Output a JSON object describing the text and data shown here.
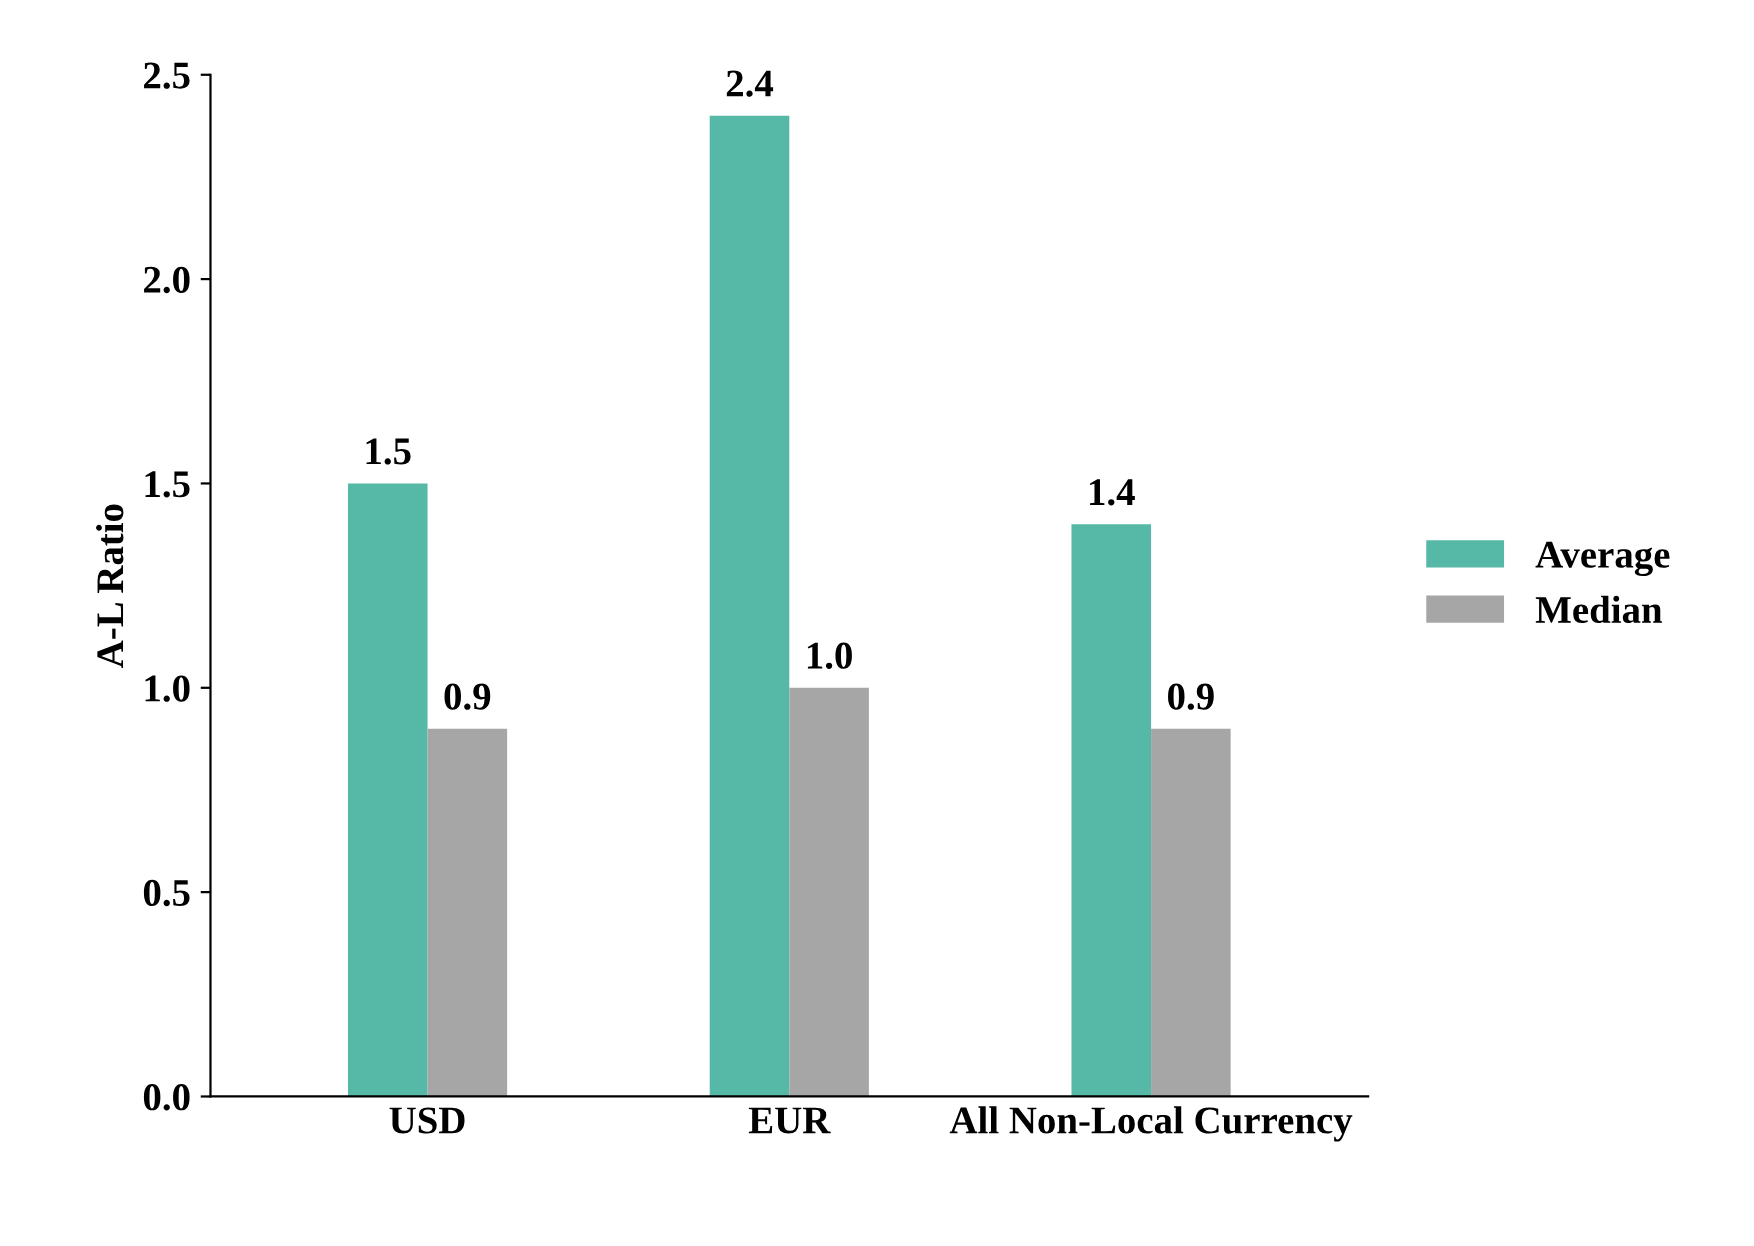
{
  "chart_data": {
    "type": "bar",
    "ylabel": "A-L Ratio",
    "categories": [
      "USD",
      "EUR",
      "All Non-Local Currency"
    ],
    "series": [
      {
        "name": "Average",
        "color": "#56b8a6",
        "values": [
          1.5,
          2.4,
          1.4
        ],
        "value_labels": [
          "1.5",
          "2.4",
          "1.4"
        ]
      },
      {
        "name": "Median",
        "color": "#a6a6a6",
        "values": [
          0.9,
          1.0,
          0.9
        ],
        "value_labels": [
          "0.9",
          "1.0",
          "0.9"
        ]
      }
    ],
    "ylim": [
      0,
      2.5
    ],
    "yticks": [
      {
        "value": 0,
        "label": "0.0"
      },
      0.5,
      {
        "value": 1,
        "label": "1.0"
      },
      1.5,
      {
        "value": 2,
        "label": "2.0"
      },
      2.5
    ],
    "grid": false,
    "legend": "right"
  }
}
